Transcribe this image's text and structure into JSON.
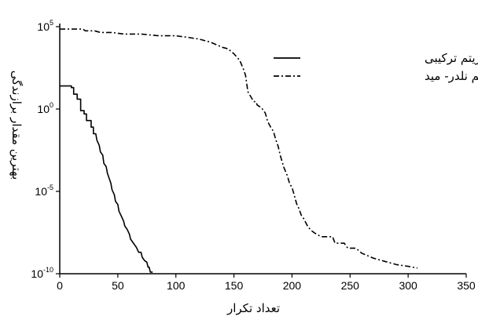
{
  "chart_data": {
    "type": "line",
    "xlabel": "تعداد تکرار",
    "ylabel": "بهترین مقدار برازندگی",
    "xlim": [
      0,
      350
    ],
    "ylim_exp": [
      -10,
      5
    ],
    "y_scale": "log",
    "grid": false,
    "legend_position": "top-right",
    "x_ticks": [
      "0",
      "50",
      "100",
      "150",
      "200",
      "250",
      "300",
      "350"
    ],
    "y_ticks": [
      {
        "base": "10",
        "exp": "5",
        "value_exp": 5
      },
      {
        "base": "10",
        "exp": "0",
        "value_exp": 0
      },
      {
        "base": "10",
        "exp": "-5",
        "value_exp": -5
      },
      {
        "base": "10",
        "exp": "-10",
        "value_exp": -10
      }
    ],
    "series": [
      {
        "name": "الگوریتم ترکیبی",
        "style": "solid",
        "color": "#000000",
        "points": [
          [
            0,
            1.4
          ],
          [
            10,
            1.4
          ],
          [
            10,
            1.3
          ],
          [
            12,
            1.3
          ],
          [
            12,
            0.9
          ],
          [
            15,
            0.9
          ],
          [
            15,
            0.6
          ],
          [
            18,
            0.6
          ],
          [
            18,
            -0.1
          ],
          [
            21,
            -0.1
          ],
          [
            21,
            -0.3
          ],
          [
            23,
            -0.3
          ],
          [
            23,
            -0.7
          ],
          [
            27,
            -0.7
          ],
          [
            27,
            -1.1
          ],
          [
            29,
            -1.1
          ],
          [
            29,
            -1.5
          ],
          [
            31,
            -1.5
          ],
          [
            32,
            -1.9
          ],
          [
            34,
            -2.2
          ],
          [
            35,
            -2.6
          ],
          [
            37,
            -2.8
          ],
          [
            38,
            -3.3
          ],
          [
            40,
            -3.5
          ],
          [
            41,
            -3.9
          ],
          [
            43,
            -4.3
          ],
          [
            44,
            -4.5
          ],
          [
            45,
            -4.9
          ],
          [
            47,
            -5.2
          ],
          [
            48,
            -5.6
          ],
          [
            50,
            -5.8
          ],
          [
            51,
            -6.2
          ],
          [
            53,
            -6.5
          ],
          [
            55,
            -6.8
          ],
          [
            56,
            -7.1
          ],
          [
            58,
            -7.3
          ],
          [
            60,
            -7.6
          ],
          [
            61,
            -7.9
          ],
          [
            63,
            -8.1
          ],
          [
            65,
            -8.3
          ],
          [
            66,
            -8.4
          ],
          [
            68,
            -8.7
          ],
          [
            70,
            -8.7
          ],
          [
            71,
            -9.0
          ],
          [
            73,
            -9.2
          ],
          [
            75,
            -9.3
          ],
          [
            76,
            -9.6
          ],
          [
            77,
            -9.6
          ],
          [
            78,
            -9.9
          ],
          [
            80,
            -9.9
          ]
        ]
      },
      {
        "name": "الگوریتم نلدر- مید",
        "style": "dashdot",
        "color": "#000000",
        "points": [
          [
            0,
            4.85
          ],
          [
            10,
            4.85
          ],
          [
            20,
            4.85
          ],
          [
            22,
            4.75
          ],
          [
            30,
            4.75
          ],
          [
            35,
            4.65
          ],
          [
            45,
            4.65
          ],
          [
            55,
            4.55
          ],
          [
            70,
            4.55
          ],
          [
            85,
            4.45
          ],
          [
            100,
            4.45
          ],
          [
            110,
            4.35
          ],
          [
            120,
            4.25
          ],
          [
            130,
            4.05
          ],
          [
            140,
            3.75
          ],
          [
            145,
            3.65
          ],
          [
            150,
            3.35
          ],
          [
            155,
            2.95
          ],
          [
            158,
            2.45
          ],
          [
            160,
            2.05
          ],
          [
            162,
            1.05
          ],
          [
            167,
            0.45
          ],
          [
            169,
            0.45
          ],
          [
            170,
            0.25
          ],
          [
            174,
            0.05
          ],
          [
            177,
            -0.25
          ],
          [
            179,
            -0.75
          ],
          [
            182,
            -1.15
          ],
          [
            184,
            -1.35
          ],
          [
            186,
            -1.85
          ],
          [
            188,
            -2.25
          ],
          [
            190,
            -2.85
          ],
          [
            193,
            -3.55
          ],
          [
            196,
            -4.05
          ],
          [
            198,
            -4.55
          ],
          [
            200,
            -4.75
          ],
          [
            202,
            -5.25
          ],
          [
            204,
            -5.75
          ],
          [
            206,
            -6.05
          ],
          [
            208,
            -6.45
          ],
          [
            210,
            -6.65
          ],
          [
            213,
            -7.05
          ],
          [
            216,
            -7.35
          ],
          [
            220,
            -7.55
          ],
          [
            225,
            -7.75
          ],
          [
            235,
            -7.75
          ],
          [
            237,
            -8.15
          ],
          [
            245,
            -8.15
          ],
          [
            248,
            -8.45
          ],
          [
            255,
            -8.45
          ],
          [
            260,
            -8.75
          ],
          [
            270,
            -9.05
          ],
          [
            280,
            -9.25
          ],
          [
            290,
            -9.45
          ],
          [
            300,
            -9.55
          ],
          [
            308,
            -9.65
          ]
        ]
      }
    ]
  }
}
